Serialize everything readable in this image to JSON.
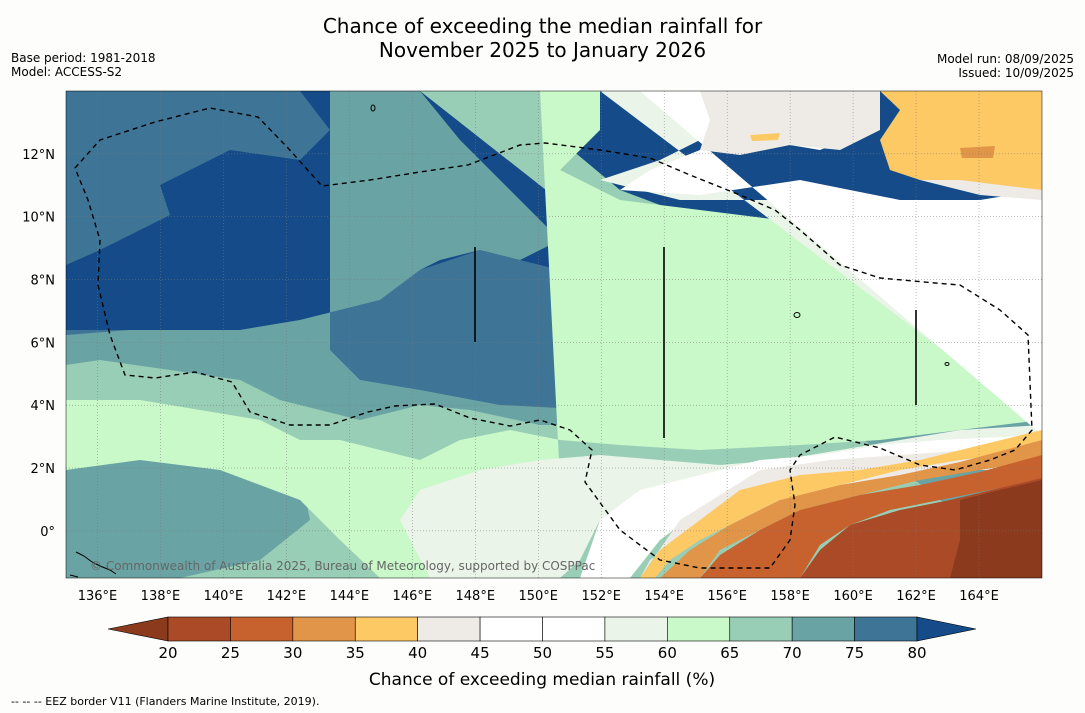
{
  "title": {
    "line1": "Chance of exceeding the median rainfall for",
    "line2": "November 2025 to January 2026"
  },
  "meta_left": {
    "base_period": "Base period: 1981-2018",
    "model": "Model: ACCESS-S2"
  },
  "meta_right": {
    "model_run": "Model run: 08/09/2025",
    "issued": "Issued: 10/09/2025"
  },
  "map": {
    "lon_labels": [
      "136°E",
      "138°E",
      "140°E",
      "142°E",
      "144°E",
      "146°E",
      "148°E",
      "150°E",
      "152°E",
      "154°E",
      "156°E",
      "158°E",
      "160°E",
      "162°E",
      "164°E"
    ],
    "lat_labels": [
      "12°N",
      "10°N",
      "8°N",
      "6°N",
      "4°N",
      "2°N",
      "0°"
    ],
    "lon_range": [
      135,
      166
    ],
    "lat_range": [
      -1.5,
      14
    ],
    "copyright": "© Commonwealth of Australia 2025, Bureau of Meteorology, supported by COSPPac"
  },
  "colorbar": {
    "title": "Chance of exceeding median rainfall (%)",
    "ticks": [
      "20",
      "25",
      "30",
      "35",
      "40",
      "45",
      "50",
      "55",
      "60",
      "65",
      "70",
      "75",
      "80"
    ],
    "colors": [
      "#8b3a1e",
      "#ab4a27",
      "#c7622f",
      "#e09548",
      "#fdc965",
      "#eeeae5",
      "#ffffff",
      "#ffffff",
      "#ebf4e8",
      "#c9f9c9",
      "#98ceb5",
      "#6aa3a4",
      "#3e7597",
      "#144b88"
    ]
  },
  "footnote": "--  --  -- EEZ border V11 (Flanders Marine Institute, 2019)."
}
